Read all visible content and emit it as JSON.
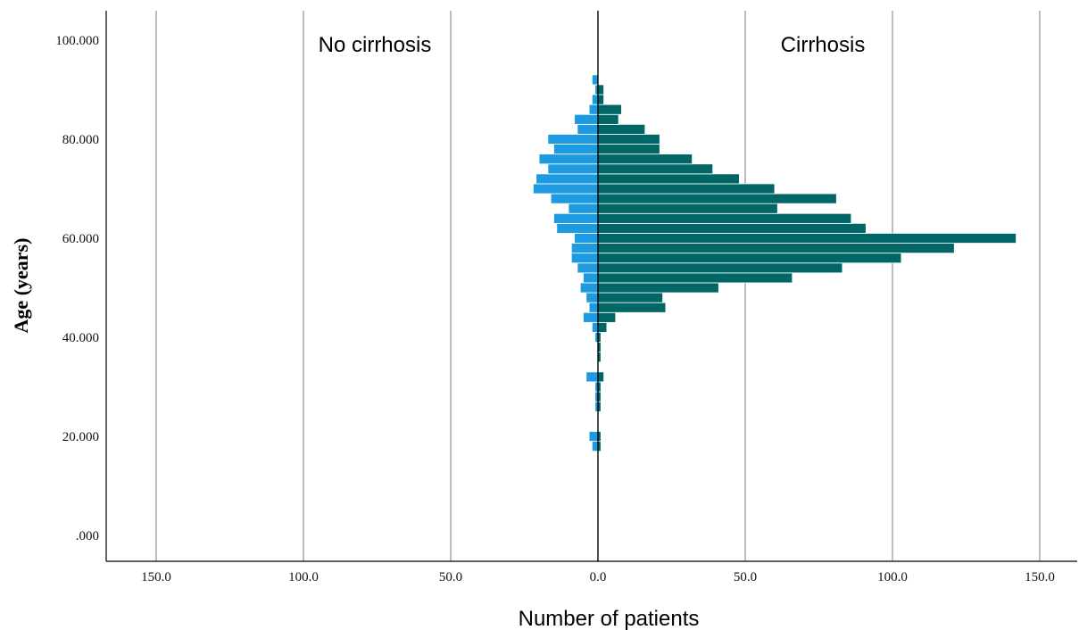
{
  "chart_data": {
    "type": "bar",
    "orientation": "horizontal-population-pyramid",
    "xlabel": "Number of patients",
    "ylabel": "Age (years)",
    "ylim": [
      0,
      105
    ],
    "xlim": [
      -165,
      165
    ],
    "y_ticks": [
      {
        "value": 0,
        "label": ".000"
      },
      {
        "value": 20,
        "label": "20.000"
      },
      {
        "value": 40,
        "label": "40.000"
      },
      {
        "value": 60,
        "label": "60.000"
      },
      {
        "value": 80,
        "label": "80.000"
      },
      {
        "value": 100,
        "label": "100.000"
      }
    ],
    "x_ticks": [
      {
        "value": -150,
        "label": "150.0"
      },
      {
        "value": -100,
        "label": "100.0"
      },
      {
        "value": -50,
        "label": "50.0"
      },
      {
        "value": 0,
        "label": "0.0"
      },
      {
        "value": 50,
        "label": "50.0"
      },
      {
        "value": 100,
        "label": "100.0"
      },
      {
        "value": 150,
        "label": "150.0"
      }
    ],
    "grid": "vertical",
    "bin_width": 2,
    "bins": [
      18,
      20,
      26,
      28,
      30,
      32,
      36,
      38,
      40,
      42,
      44,
      46,
      48,
      50,
      52,
      54,
      56,
      58,
      60,
      62,
      64,
      66,
      68,
      70,
      72,
      74,
      76,
      78,
      80,
      82,
      84,
      86,
      88,
      90,
      92
    ],
    "series": [
      {
        "name": "No cirrhosis",
        "side": "left",
        "color": "#1e9be0",
        "values": [
          2,
          3,
          1,
          1,
          1,
          4,
          0,
          0,
          1,
          2,
          5,
          3,
          4,
          6,
          5,
          7,
          9,
          9,
          8,
          14,
          15,
          10,
          16,
          22,
          21,
          17,
          20,
          15,
          17,
          7,
          8,
          3,
          2,
          1,
          2
        ]
      },
      {
        "name": "Cirrhosis",
        "side": "right",
        "color": "#006666",
        "values": [
          1,
          1,
          1,
          1,
          1,
          2,
          1,
          1,
          1,
          3,
          6,
          23,
          22,
          41,
          66,
          83,
          103,
          121,
          142,
          91,
          86,
          61,
          81,
          60,
          48,
          39,
          32,
          21,
          21,
          16,
          7,
          8,
          2,
          2,
          0
        ]
      }
    ]
  }
}
